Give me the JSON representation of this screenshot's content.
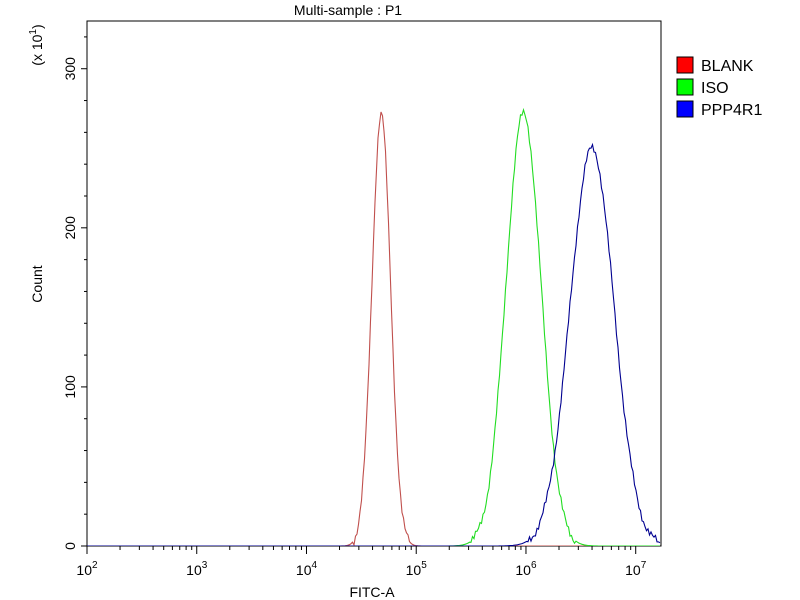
{
  "chart_data": {
    "type": "line",
    "title": "Multi-sample : P1",
    "xlabel": "FITC-A",
    "ylabel": "Count",
    "y_multiplier_label": "(x 10",
    "y_multiplier_exp": "1",
    "y_multiplier_close": ")",
    "x_scale": "log",
    "xlim": [
      100,
      17000000
    ],
    "ylim": [
      0,
      330
    ],
    "x_ticks": [
      {
        "value": 100,
        "base": "10",
        "exp": "2"
      },
      {
        "value": 1000,
        "base": "10",
        "exp": "3"
      },
      {
        "value": 10000,
        "base": "10",
        "exp": "4"
      },
      {
        "value": 100000,
        "base": "10",
        "exp": "5"
      },
      {
        "value": 1000000,
        "base": "10",
        "exp": "6"
      },
      {
        "value": 10000000,
        "base": "10",
        "exp": "7"
      }
    ],
    "y_ticks": [
      0,
      100,
      200,
      300
    ],
    "grid": false,
    "legend_position": "right",
    "series": [
      {
        "name": "BLANK",
        "color": "#ff0000",
        "line_color": "#c0504d",
        "peak_x": 48000,
        "peak_y": 272,
        "log_sigma": 0.085
      },
      {
        "name": "ISO",
        "color": "#00ff00",
        "line_color": "#22dd22",
        "peak_x": 950000,
        "peak_y": 272,
        "log_sigma": 0.16
      },
      {
        "name": "PPP4R1",
        "color": "#0000ff",
        "line_color": "#000090",
        "peak_x": 4000000,
        "peak_y": 250,
        "log_sigma": 0.2
      }
    ]
  }
}
